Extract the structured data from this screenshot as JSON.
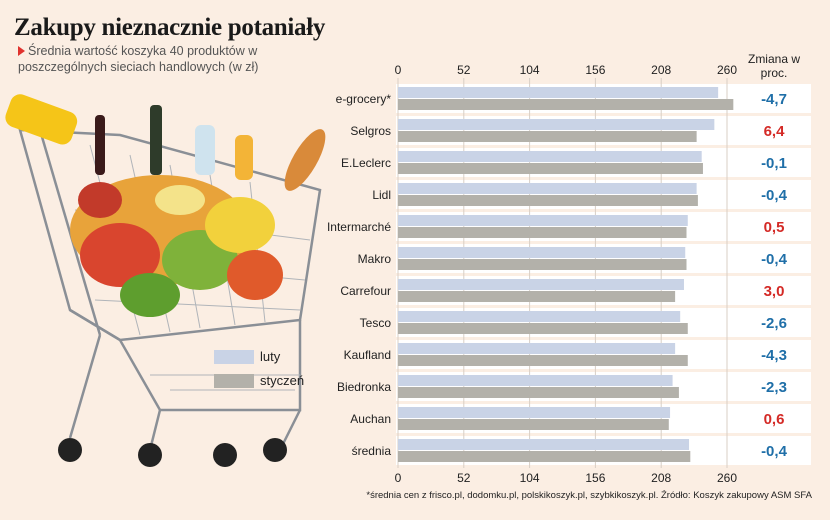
{
  "title": "Zakupy nieznacznie potaniały",
  "subtitle": "Średnia wartość koszyka 40 produktów w poszczególnych sieciach handlowych (w zł)",
  "change_header": "Zmiana w proc.",
  "footnote": "*średnia cen z frisco.pl, dodomku.pl, polskikoszyk.pl, szybkikoszyk.pl. Źródło: Koszyk zakupowy ASM SFA",
  "colors": {
    "background": "#fbeee3",
    "luty": "#c9d3e6",
    "styczen": "#b3b1aa",
    "positive_change": "#d42a26",
    "negative_change": "#1f6fa8",
    "row_band": "#ffffff"
  },
  "chart_data": {
    "type": "bar",
    "orientation": "horizontal",
    "categories": [
      "e-grocery*",
      "Selgros",
      "E.Leclerc",
      "Lidl",
      "Intermarché",
      "Makro",
      "Carrefour",
      "Tesco",
      "Kaufland",
      "Biedronka",
      "Auchan",
      "średnia"
    ],
    "series": [
      {
        "name": "luty",
        "values": [
          253,
          250,
          240,
          236,
          229,
          227,
          226,
          223,
          219,
          217,
          215,
          230
        ]
      },
      {
        "name": "styczeń",
        "values": [
          265,
          236,
          241,
          237,
          228,
          228,
          219,
          229,
          229,
          222,
          214,
          231
        ]
      }
    ],
    "change_pct": [
      "-4,7",
      "6,4",
      "-0,1",
      "-0,4",
      "0,5",
      "-0,4",
      "3,0",
      "-2,6",
      "-4,3",
      "-2,3",
      "0,6",
      "-0,4"
    ],
    "xticks": [
      "0",
      "52",
      "104",
      "156",
      "208",
      "260"
    ],
    "xlim": [
      0,
      260
    ],
    "legend": "bottom-left"
  }
}
